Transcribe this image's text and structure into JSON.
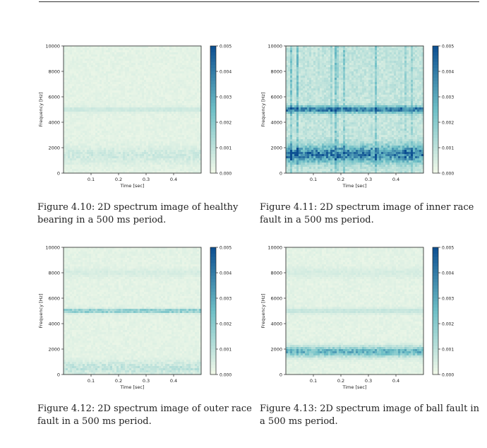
{
  "figures": [
    {
      "id": "4.10",
      "label": "Figure 4.10:",
      "caption": "2D spectrum image of healthy bearing in a 500 ms period.",
      "pattern": "healthy"
    },
    {
      "id": "4.11",
      "label": "Figure 4.11:",
      "caption": "2D spectrum image of inner race fault in a 500 ms period.",
      "pattern": "inner"
    },
    {
      "id": "4.12",
      "label": "Figure 4.12:",
      "caption": "2D spectrum image of outer race fault in a 500 ms period.",
      "pattern": "outer"
    },
    {
      "id": "4.13",
      "label": "Figure 4.13:",
      "caption": "2D spectrum image of ball fault in a 500 ms period.",
      "pattern": "ball"
    }
  ],
  "chart_data": [
    {
      "type": "heatmap",
      "title": "",
      "xlabel": "Time [sec]",
      "ylabel": "Frequency [Hz]",
      "xlim": [
        0,
        0.5
      ],
      "ylim": [
        0,
        10000
      ],
      "x_ticks": [
        "0.1",
        "0.2",
        "0.3",
        "0.4"
      ],
      "y_ticks": [
        "0",
        "2000",
        "4000",
        "6000",
        "8000",
        "10000"
      ],
      "colorbar_ticks": [
        "0.000",
        "0.001",
        "0.002",
        "0.003",
        "0.004",
        "0.005"
      ],
      "colorbar_range": [
        0,
        0.005
      ],
      "dominant_bands_hz": [
        5000,
        1500
      ],
      "intensity_peak": 0.001
    },
    {
      "type": "heatmap",
      "title": "",
      "xlabel": "Time [sec]",
      "ylabel": "Frequency [Hz]",
      "xlim": [
        0,
        0.5
      ],
      "ylim": [
        0,
        10000
      ],
      "x_ticks": [
        "0.1",
        "0.2",
        "0.3",
        "0.4"
      ],
      "y_ticks": [
        "0",
        "2000",
        "4000",
        "6000",
        "8000",
        "10000"
      ],
      "colorbar_ticks": [
        "0.000",
        "0.001",
        "0.002",
        "0.003",
        "0.004",
        "0.005"
      ],
      "colorbar_range": [
        0,
        0.005
      ],
      "dominant_bands_hz": [
        5000,
        1500
      ],
      "intensity_peak": 0.005
    },
    {
      "type": "heatmap",
      "title": "",
      "xlabel": "Time [sec]",
      "ylabel": "Frequency [Hz]",
      "xlim": [
        0,
        0.5
      ],
      "ylim": [
        0,
        10000
      ],
      "x_ticks": [
        "0.1",
        "0.2",
        "0.3",
        "0.4"
      ],
      "y_ticks": [
        "0",
        "2000",
        "4000",
        "6000",
        "8000",
        "10000"
      ],
      "colorbar_ticks": [
        "0.000",
        "0.001",
        "0.002",
        "0.003",
        "0.004",
        "0.005"
      ],
      "colorbar_range": [
        0,
        0.005
      ],
      "dominant_bands_hz": [
        5000,
        500
      ],
      "intensity_peak": 0.003
    },
    {
      "type": "heatmap",
      "title": "",
      "xlabel": "Time [sec]",
      "ylabel": "Frequency [Hz]",
      "xlim": [
        0,
        0.5
      ],
      "ylim": [
        0,
        10000
      ],
      "x_ticks": [
        "0.1",
        "0.2",
        "0.3",
        "0.4"
      ],
      "y_ticks": [
        "0",
        "2000",
        "4000",
        "6000",
        "8000",
        "10000"
      ],
      "colorbar_ticks": [
        "0.000",
        "0.001",
        "0.002",
        "0.003",
        "0.004",
        "0.005"
      ],
      "colorbar_range": [
        0,
        0.005
      ],
      "dominant_bands_hz": [
        5000,
        1800
      ],
      "intensity_peak": 0.0035
    }
  ],
  "colors": {
    "low": "#f2f9e9",
    "mid": "#6ebfc6",
    "high": "#0b4e91"
  }
}
